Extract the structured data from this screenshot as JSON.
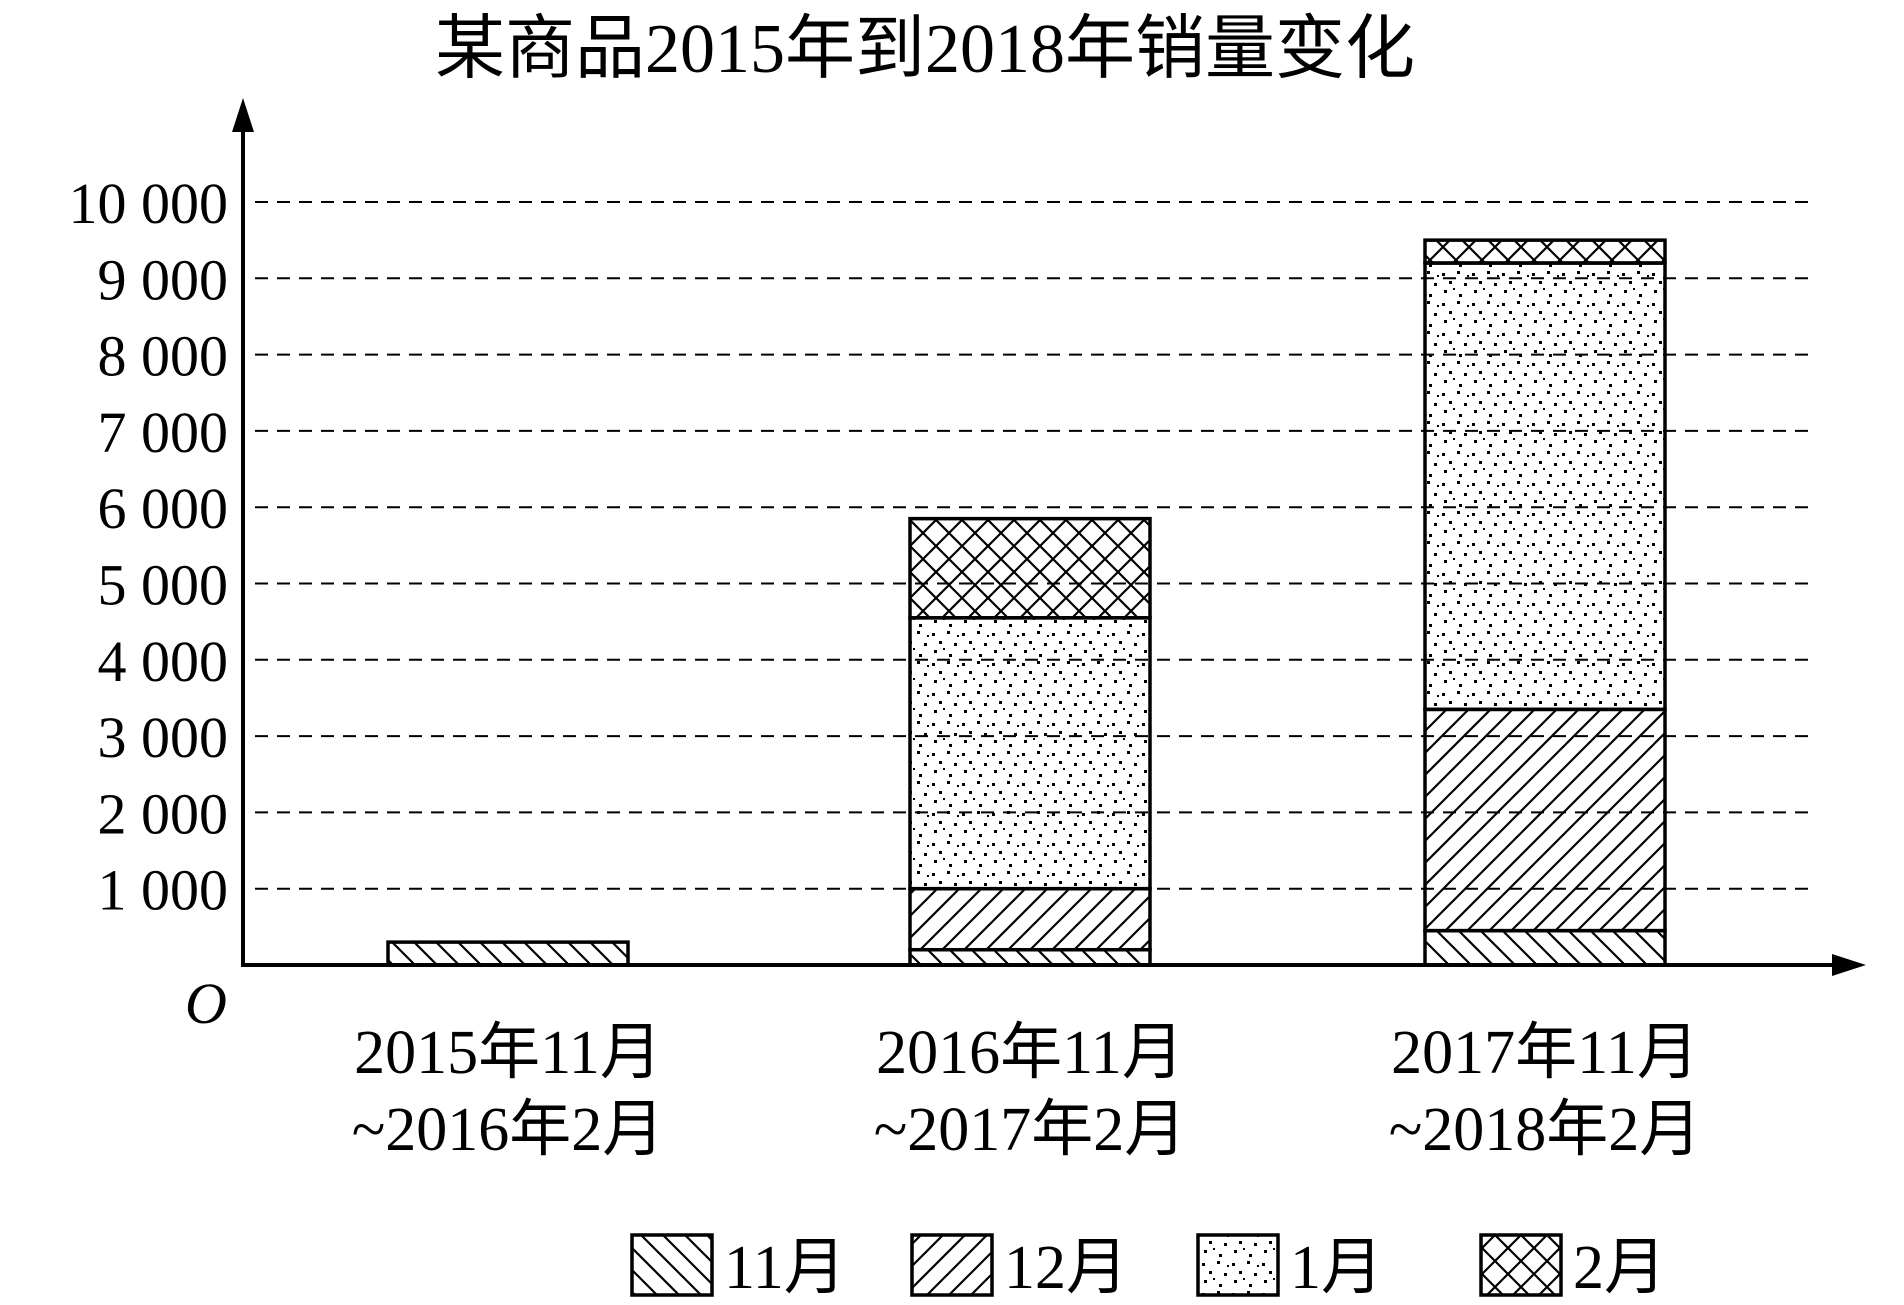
{
  "chart_data": {
    "type": "bar",
    "stacked": true,
    "title": "某商品2015年到2018年销量变化",
    "origin_label": "O",
    "categories": [
      [
        "2015年11月",
        "~2016年2月"
      ],
      [
        "2016年11月",
        "~2017年2月"
      ],
      [
        "2017年11月",
        "~2018年2月"
      ]
    ],
    "y_ticks": [
      "1 000",
      "2 000",
      "3 000",
      "4 000",
      "5 000",
      "6 000",
      "7 000",
      "8 000",
      "9 000",
      "10 000"
    ],
    "ylim": [
      0,
      10000
    ],
    "grid": "dashed-horizontal",
    "legend_position": "bottom",
    "series": [
      {
        "name": "11月",
        "pattern": "hatch-backslash",
        "values": [
          300,
          200,
          450
        ]
      },
      {
        "name": "12月",
        "pattern": "hatch-slash",
        "values": [
          0,
          800,
          2900
        ]
      },
      {
        "name": "1月",
        "pattern": "dots",
        "values": [
          0,
          3550,
          5850
        ]
      },
      {
        "name": "2月",
        "pattern": "crosshatch",
        "values": [
          0,
          1300,
          300
        ]
      }
    ],
    "colors": {
      "ink": "#000000",
      "background": "#ffffff"
    }
  }
}
